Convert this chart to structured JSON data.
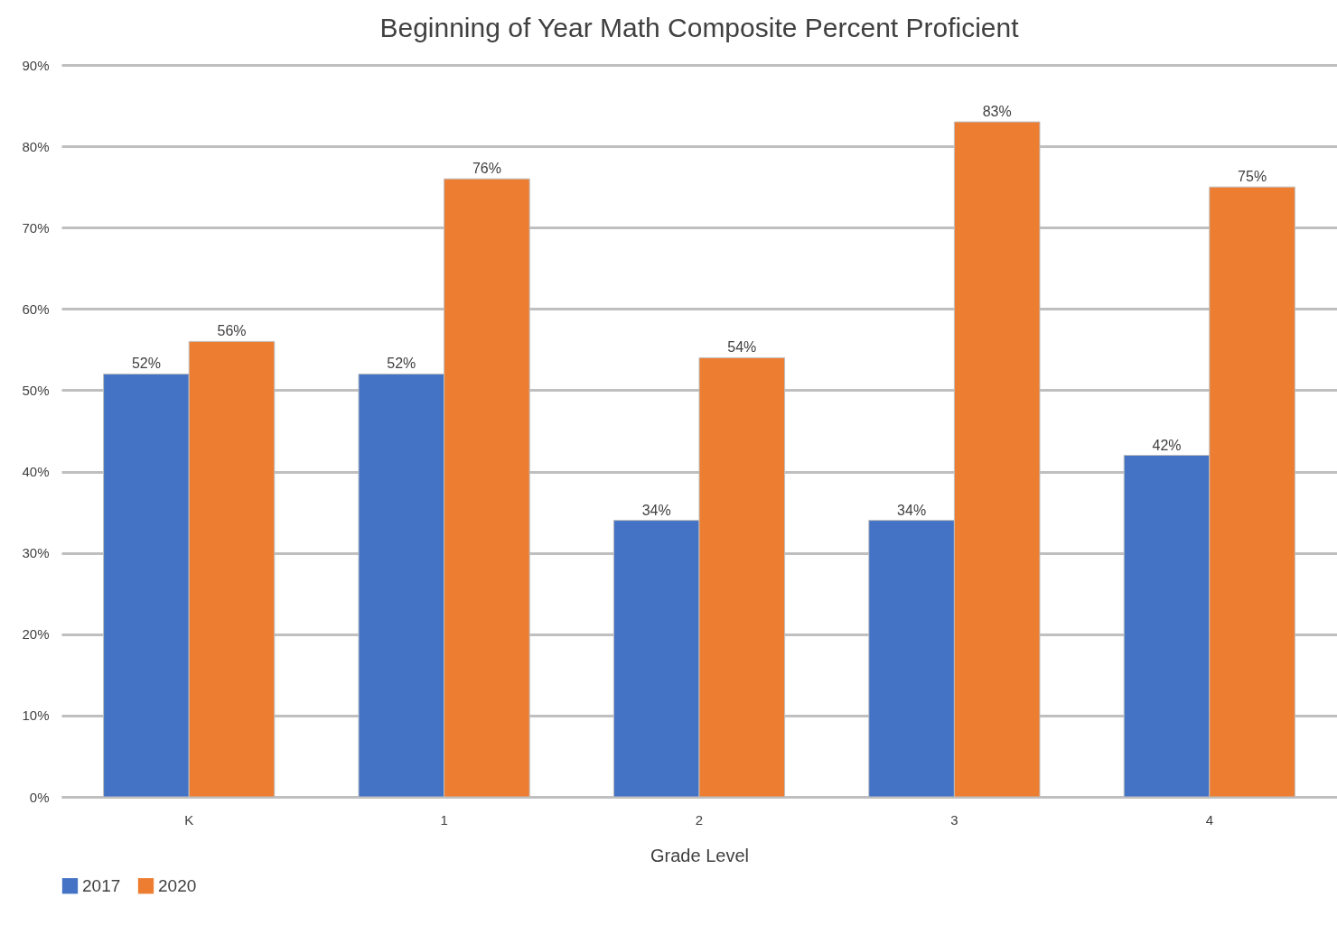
{
  "chart_data": {
    "type": "bar",
    "title": "Beginning of Year Math Composite Percent Proficient",
    "xlabel": "Grade Level",
    "categories": [
      "K",
      "1",
      "2",
      "3",
      "4"
    ],
    "series": [
      {
        "name": "2017",
        "color": "#4472c4",
        "values": [
          52,
          52,
          34,
          34,
          42
        ],
        "value_labels": [
          "52%",
          "52%",
          "34%",
          "34%",
          "42%"
        ]
      },
      {
        "name": "2020",
        "color": "#ed7d31",
        "values": [
          56,
          76,
          54,
          83,
          75
        ],
        "value_labels": [
          "56%",
          "76%",
          "54%",
          "83%",
          "75%"
        ]
      }
    ],
    "ylim": [
      0,
      90
    ],
    "yticks": [
      {
        "value": 0,
        "label": "0%"
      },
      {
        "value": 10,
        "label": "10%"
      },
      {
        "value": 20,
        "label": "20%"
      },
      {
        "value": 30,
        "label": "30%"
      },
      {
        "value": 40,
        "label": "40%"
      },
      {
        "value": 50,
        "label": "50%"
      },
      {
        "value": 60,
        "label": "60%"
      },
      {
        "value": 70,
        "label": "70%"
      },
      {
        "value": 80,
        "label": "80%"
      },
      {
        "value": 90,
        "label": "90%"
      }
    ],
    "grid": "y",
    "legend": "bottom"
  }
}
